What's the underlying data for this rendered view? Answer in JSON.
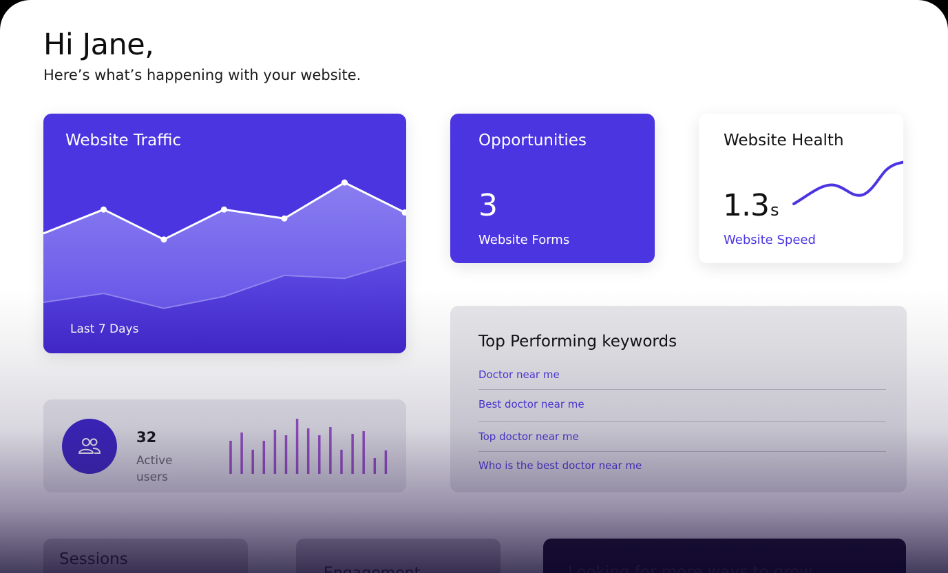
{
  "greeting": "Hi Jane,",
  "subtitle": "Here’s what’s happening with your website.",
  "colors": {
    "accent": "#4b35e0",
    "accent_dark": "#3a22c8",
    "bars": "#9a4fc9"
  },
  "traffic": {
    "title": "Website Traffic",
    "range_label": "Last 7 Days",
    "chart_data": {
      "type": "area",
      "series": [
        {
          "values": [
            40,
            48,
            38,
            48,
            45,
            57,
            47
          ]
        },
        {
          "values": [
            17,
            20,
            15,
            19,
            26,
            25,
            31
          ]
        }
      ],
      "ylim": [
        0,
        80
      ]
    }
  },
  "opportunities": {
    "title": "Opportunities",
    "value": "3",
    "label": "Website Forms"
  },
  "health": {
    "title": "Website Health",
    "value": "1.3",
    "unit": "s",
    "label": "Website Speed"
  },
  "users": {
    "count": "32",
    "label": "Active users",
    "icon": "users-icon",
    "chart_data": {
      "type": "bar",
      "values": [
        48,
        60,
        35,
        48,
        64,
        56,
        80,
        66,
        56,
        68,
        35,
        58,
        62,
        23,
        34
      ]
    }
  },
  "keywords": {
    "title": "Top Performing keywords",
    "items": [
      "Doctor near me",
      "Best doctor near me",
      "Top doctor near me",
      "Who is the best doctor near me"
    ]
  },
  "sessions": {
    "title": "Sessions"
  },
  "engagement": {
    "title": "Engagement"
  },
  "promo": {
    "title": "Looking for more ways to grow"
  }
}
